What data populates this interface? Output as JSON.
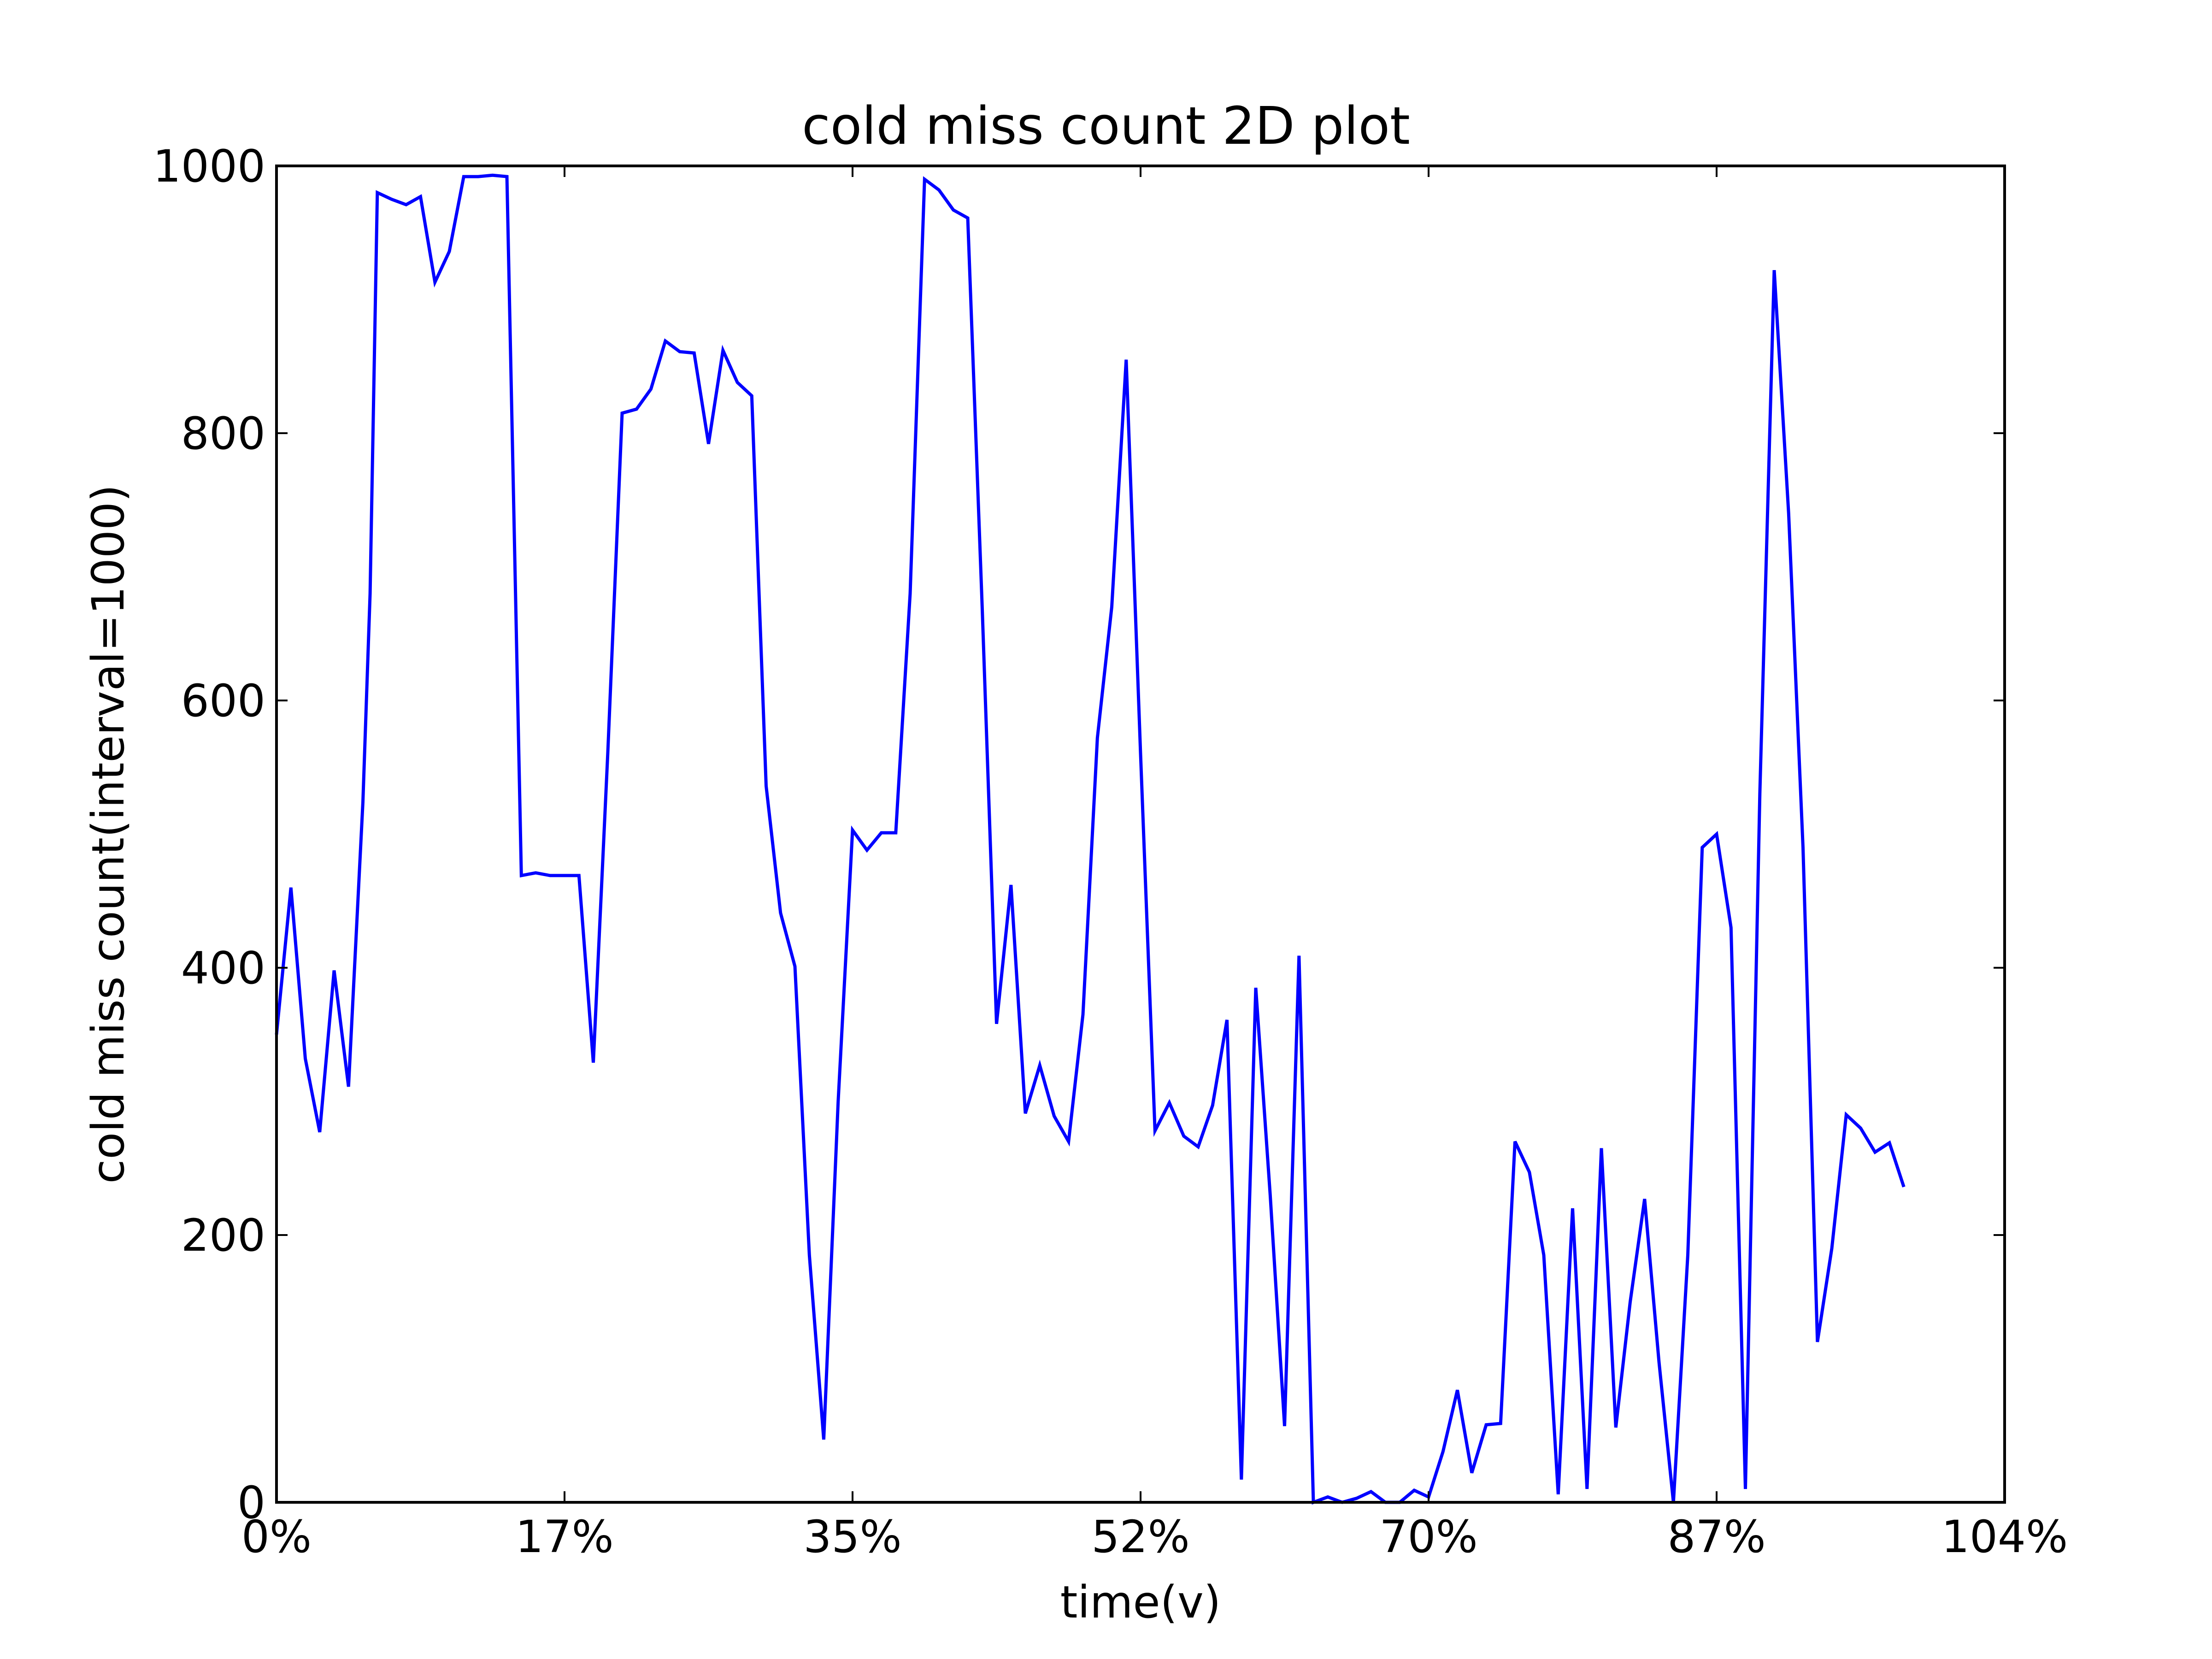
{
  "chart_data": {
    "type": "line",
    "title": "cold miss count 2D plot",
    "xlabel": "time(v)",
    "ylabel": "cold miss count(interval=1000)",
    "xlim": [
      0,
      120
    ],
    "ylim": [
      0,
      1000
    ],
    "x_ticks": [
      {
        "value": 0,
        "label": "0%"
      },
      {
        "value": 20,
        "label": "17%"
      },
      {
        "value": 40,
        "label": "35%"
      },
      {
        "value": 60,
        "label": "52%"
      },
      {
        "value": 80,
        "label": "70%"
      },
      {
        "value": 100,
        "label": "87%"
      },
      {
        "value": 120,
        "label": "104%"
      }
    ],
    "y_ticks": [
      {
        "value": 0,
        "label": "0"
      },
      {
        "value": 200,
        "label": "200"
      },
      {
        "value": 400,
        "label": "400"
      },
      {
        "value": 600,
        "label": "600"
      },
      {
        "value": 800,
        "label": "800"
      },
      {
        "value": 1000,
        "label": "1000"
      }
    ],
    "grid": false,
    "legend": "none",
    "line_color": "#0000ff",
    "series": [
      {
        "values": [
          [
            0,
            350
          ],
          [
            1,
            460
          ],
          [
            2,
            332
          ],
          [
            3,
            277
          ],
          [
            4,
            398
          ],
          [
            5,
            311
          ],
          [
            6,
            524
          ],
          [
            6.5,
            680
          ],
          [
            7,
            980
          ],
          [
            8,
            975
          ],
          [
            9,
            971
          ],
          [
            10,
            977
          ],
          [
            11,
            913
          ],
          [
            12,
            936
          ],
          [
            13,
            992
          ],
          [
            14,
            992
          ],
          [
            15,
            993
          ],
          [
            16,
            992
          ],
          [
            17,
            469
          ],
          [
            18,
            471
          ],
          [
            19,
            469
          ],
          [
            20,
            469
          ],
          [
            21,
            469
          ],
          [
            22,
            329
          ],
          [
            23,
            560
          ],
          [
            24,
            815
          ],
          [
            25,
            818
          ],
          [
            26,
            833
          ],
          [
            27,
            869
          ],
          [
            28,
            861
          ],
          [
            29,
            860
          ],
          [
            30,
            792
          ],
          [
            31,
            862
          ],
          [
            32,
            838
          ],
          [
            33,
            828
          ],
          [
            34,
            536
          ],
          [
            35,
            441
          ],
          [
            36,
            401
          ],
          [
            37,
            185
          ],
          [
            38,
            47
          ],
          [
            39,
            300
          ],
          [
            40,
            503
          ],
          [
            41,
            488
          ],
          [
            42,
            501
          ],
          [
            43,
            501
          ],
          [
            44,
            680
          ],
          [
            45,
            990
          ],
          [
            46,
            982
          ],
          [
            47,
            967
          ],
          [
            48,
            961
          ],
          [
            49,
            670
          ],
          [
            50,
            358
          ],
          [
            51,
            462
          ],
          [
            52,
            291
          ],
          [
            53,
            327
          ],
          [
            54,
            289
          ],
          [
            55,
            270
          ],
          [
            56,
            365
          ],
          [
            57,
            572
          ],
          [
            58,
            670
          ],
          [
            59,
            855
          ],
          [
            60,
            560
          ],
          [
            61,
            278
          ],
          [
            62,
            299
          ],
          [
            63,
            274
          ],
          [
            64,
            266
          ],
          [
            65,
            297
          ],
          [
            66,
            361
          ],
          [
            67,
            17
          ],
          [
            68,
            385
          ],
          [
            69,
            230
          ],
          [
            70,
            57
          ],
          [
            71,
            409
          ],
          [
            72,
            0
          ],
          [
            73,
            4
          ],
          [
            74,
            0
          ],
          [
            75,
            3
          ],
          [
            76,
            8
          ],
          [
            77,
            0
          ],
          [
            78,
            0
          ],
          [
            79,
            9
          ],
          [
            80,
            4
          ],
          [
            81,
            38
          ],
          [
            82,
            84
          ],
          [
            83,
            22
          ],
          [
            84,
            58
          ],
          [
            85,
            59
          ],
          [
            86,
            270
          ],
          [
            87,
            247
          ],
          [
            88,
            185
          ],
          [
            89,
            6
          ],
          [
            90,
            220
          ],
          [
            91,
            10
          ],
          [
            92,
            265
          ],
          [
            93,
            56
          ],
          [
            94,
            150
          ],
          [
            95,
            227
          ],
          [
            96,
            105
          ],
          [
            97,
            0
          ],
          [
            98,
            185
          ],
          [
            99,
            490
          ],
          [
            100,
            500
          ],
          [
            101,
            430
          ],
          [
            102,
            10
          ],
          [
            103,
            530
          ],
          [
            104,
            922
          ],
          [
            105,
            740
          ],
          [
            106,
            490
          ],
          [
            107,
            120
          ],
          [
            108,
            190
          ],
          [
            109,
            290
          ],
          [
            110,
            280
          ],
          [
            111,
            262
          ],
          [
            112,
            269
          ],
          [
            113,
            236
          ]
        ]
      }
    ]
  }
}
